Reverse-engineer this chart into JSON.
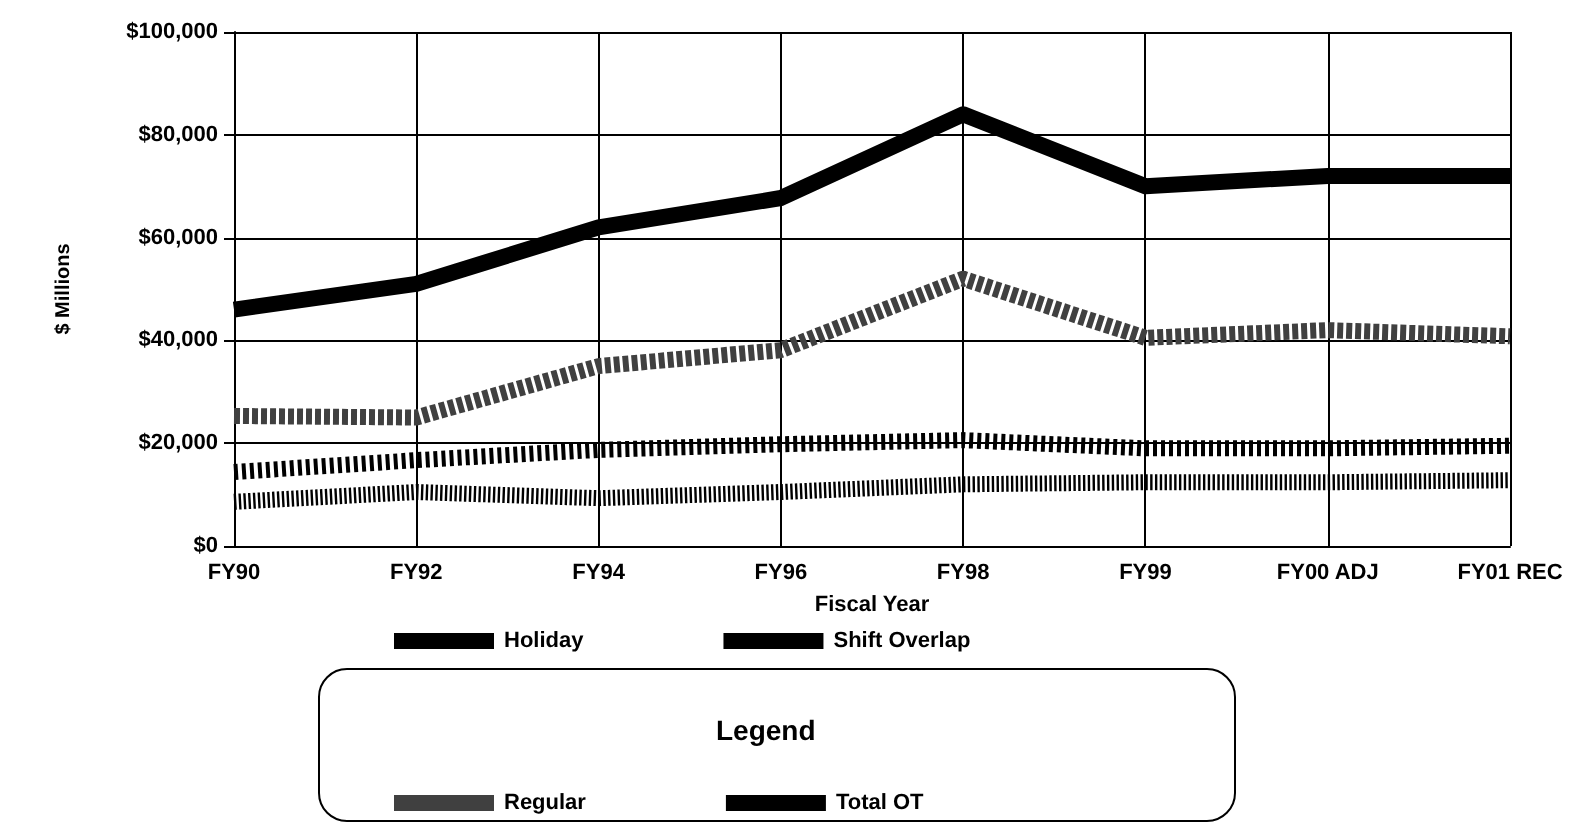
{
  "chart_data": {
    "type": "line",
    "xlabel": "Fiscal Year",
    "ylabel": "$ Millions",
    "legend_title": "Legend",
    "legend": "bottom",
    "grid": true,
    "marker": "none",
    "categories": [
      "FY90",
      "FY92",
      "FY94",
      "FY96",
      "FY98",
      "FY99",
      "FY00 ADJ",
      "FY01 REC"
    ],
    "ylim": [
      0,
      100000
    ],
    "yticks": [
      {
        "value": 0,
        "label": "$0"
      },
      {
        "value": 20000,
        "label": "$20,000"
      },
      {
        "value": 40000,
        "label": "$40,000"
      },
      {
        "value": 60000,
        "label": "$60,000"
      },
      {
        "value": 80000,
        "label": "$80,000"
      },
      {
        "value": 100000,
        "label": "$100,000"
      }
    ],
    "series": [
      {
        "name": "Holiday",
        "color": "#000000",
        "line_style": "dashed",
        "values": [
          8600,
          10500,
          9300,
          10500,
          12000,
          12400,
          12400,
          12800
        ]
      },
      {
        "name": "Shift Overlap",
        "color": "#000000",
        "line_style": "dotted",
        "values": [
          14400,
          16700,
          18700,
          19800,
          20600,
          19000,
          19000,
          19500
        ]
      },
      {
        "name": "Regular",
        "color": "#404040",
        "line_style": "dashed",
        "values": [
          25300,
          25000,
          35000,
          38100,
          52000,
          40500,
          42000,
          40800
        ]
      },
      {
        "name": "Total OT",
        "color": "#000000",
        "line_style": "solid",
        "values": [
          46000,
          51000,
          62000,
          67700,
          84000,
          70000,
          72000,
          72000
        ]
      }
    ]
  }
}
